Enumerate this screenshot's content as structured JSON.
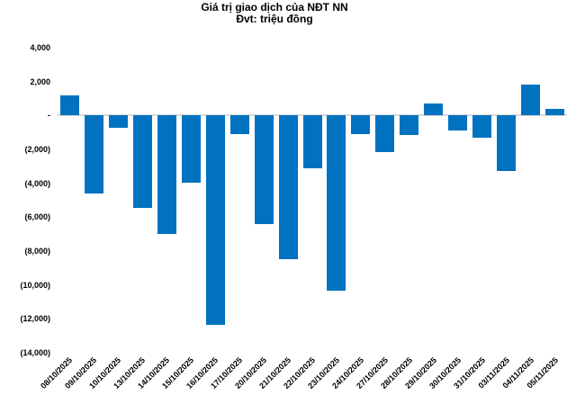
{
  "chart_data": {
    "type": "bar",
    "title": "Giá trị giao dịch của NĐT NN",
    "subtitle": "Đvt: triệu đồng",
    "categories": [
      "08/10/2025",
      "09/10/2025",
      "10/10/2025",
      "13/10/2025",
      "14/10/2025",
      "15/10/2025",
      "16/10/2025",
      "17/10/2025",
      "20/10/2025",
      "21/10/2025",
      "22/10/2025",
      "23/10/2025",
      "24/10/2025",
      "27/10/2025",
      "28/10/2025",
      "29/10/2025",
      "30/10/2025",
      "31/10/2025",
      "03/11/2025",
      "04/11/2025",
      "05/11/2025"
    ],
    "values": [
      1200,
      -4600,
      -700,
      -5450,
      -7000,
      -3950,
      -12350,
      -1100,
      -6400,
      -8500,
      -3100,
      -10350,
      -1100,
      -2150,
      -1150,
      700,
      -900,
      -1300,
      -3250,
      1800,
      400
    ],
    "ylim": [
      -14000,
      4000
    ],
    "y_ticks": [
      {
        "value": 4000,
        "label": "4,000"
      },
      {
        "value": 2000,
        "label": "2,000"
      },
      {
        "value": 0,
        "label": "-"
      },
      {
        "value": -2000,
        "label": "(2,000)"
      },
      {
        "value": -4000,
        "label": "(4,000)"
      },
      {
        "value": -6000,
        "label": "(6,000)"
      },
      {
        "value": -8000,
        "label": "(8,000)"
      },
      {
        "value": -10000,
        "label": "(10,000)"
      },
      {
        "value": -12000,
        "label": "(12,000)"
      },
      {
        "value": -14000,
        "label": "(14,000)"
      }
    ],
    "bar_color": "#0072C0",
    "axis_line_color": "#D9D9D9",
    "text_color": "#000000",
    "grid": false,
    "legend": false,
    "x_label_rotation": -45
  }
}
